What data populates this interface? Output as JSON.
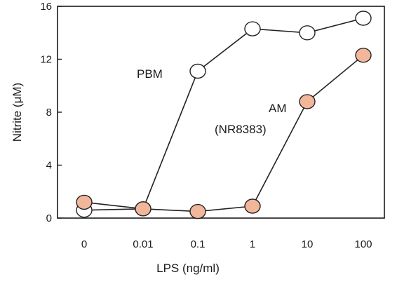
{
  "chart_data": {
    "type": "line",
    "xlabel": "LPS (ng/ml)",
    "ylabel": "Nitrite (μM)",
    "categories": [
      "0",
      "0.01",
      "0.1",
      "1",
      "10",
      "100"
    ],
    "ylim": [
      0,
      16
    ],
    "yticks": [
      "0",
      "4",
      "8",
      "12",
      "16"
    ],
    "grid": false,
    "legend": "none",
    "series": [
      {
        "name": "PBM",
        "label_lines": [
          "PBM"
        ],
        "values": [
          0.6,
          0.7,
          11.1,
          14.3,
          14.0,
          15.1
        ],
        "fill": "#ffffff",
        "stroke": "#222222"
      },
      {
        "name": "AM (NR8383)",
        "label_lines": [
          "AM",
          "(NR8383)"
        ],
        "values": [
          1.2,
          0.7,
          0.5,
          0.9,
          8.8,
          12.3
        ],
        "fill": "#f2b79a",
        "stroke": "#222222"
      }
    ]
  }
}
